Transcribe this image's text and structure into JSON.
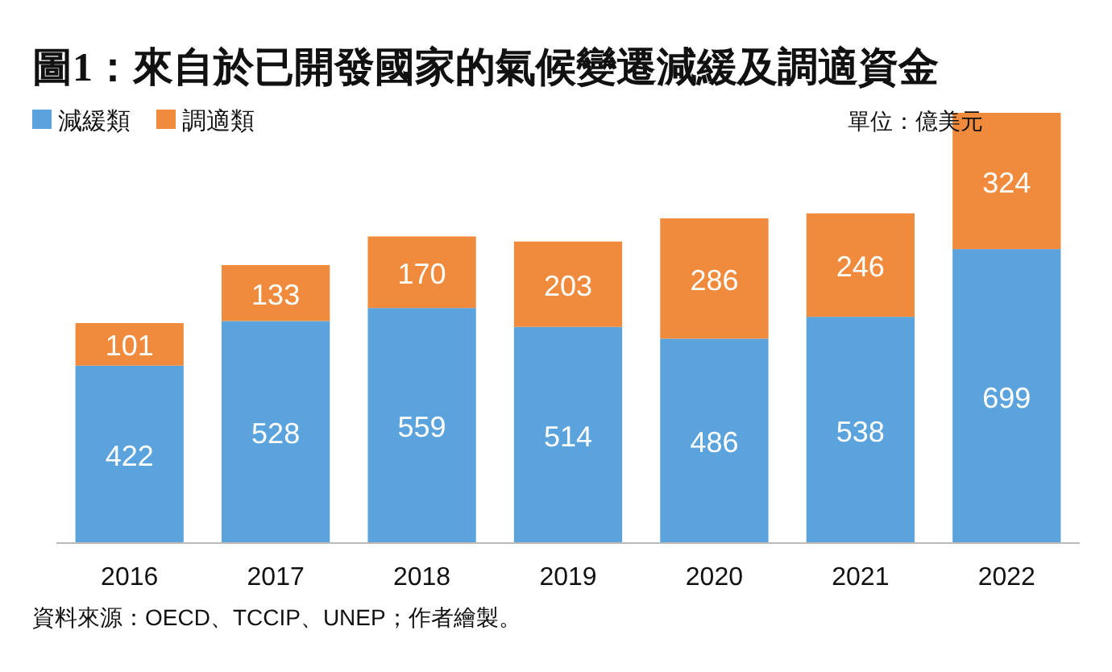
{
  "chart_data": {
    "type": "bar",
    "title": "圖1：來自於已開發國家的氣候變遷減緩及調適資金",
    "categories": [
      "2016",
      "2017",
      "2018",
      "2019",
      "2020",
      "2021",
      "2022"
    ],
    "series": [
      {
        "name": "減緩類",
        "color": "#5ba3dc",
        "values": [
          422,
          528,
          559,
          514,
          486,
          538,
          699
        ]
      },
      {
        "name": "調適類",
        "color": "#f08a3c",
        "values": [
          101,
          133,
          170,
          203,
          286,
          246,
          324
        ]
      }
    ],
    "stacked": true,
    "data_labels": true,
    "legend": "top left",
    "annotations": [
      "單位：億美元",
      "資料來源：OECD、TCCIP、UNEP；作者繪製。"
    ]
  }
}
